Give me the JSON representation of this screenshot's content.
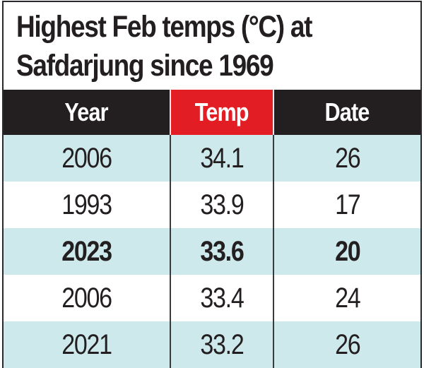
{
  "title": {
    "line1": "Highest Feb temps (°C) at",
    "line2": "Safdarjung since 1969"
  },
  "table": {
    "headers": [
      "Year",
      "Temp",
      "Date"
    ],
    "rows": [
      {
        "year": "2006",
        "temp": "34.1",
        "date": "26",
        "bold": false
      },
      {
        "year": "1993",
        "temp": "33.9",
        "date": "17",
        "bold": false
      },
      {
        "year": "2023",
        "temp": "33.6",
        "date": "20",
        "bold": true
      },
      {
        "year": "2006",
        "temp": "33.4",
        "date": "24",
        "bold": false
      },
      {
        "year": "2021",
        "temp": "33.2",
        "date": "26",
        "bold": false
      }
    ]
  },
  "colors": {
    "header_bg": "#231f20",
    "accent_header_bg": "#e31d24",
    "shaded_row_bg": "#cde9ec",
    "text": "#231f20"
  },
  "chart_data": {
    "type": "table",
    "title": "Highest Feb temps (°C) at Safdarjung since 1969",
    "columns": [
      "Year",
      "Temp",
      "Date"
    ],
    "rows": [
      [
        2006,
        34.1,
        26
      ],
      [
        1993,
        33.9,
        17
      ],
      [
        2023,
        33.6,
        20
      ],
      [
        2006,
        33.4,
        24
      ],
      [
        2021,
        33.2,
        26
      ]
    ],
    "highlighted_row": 2
  }
}
